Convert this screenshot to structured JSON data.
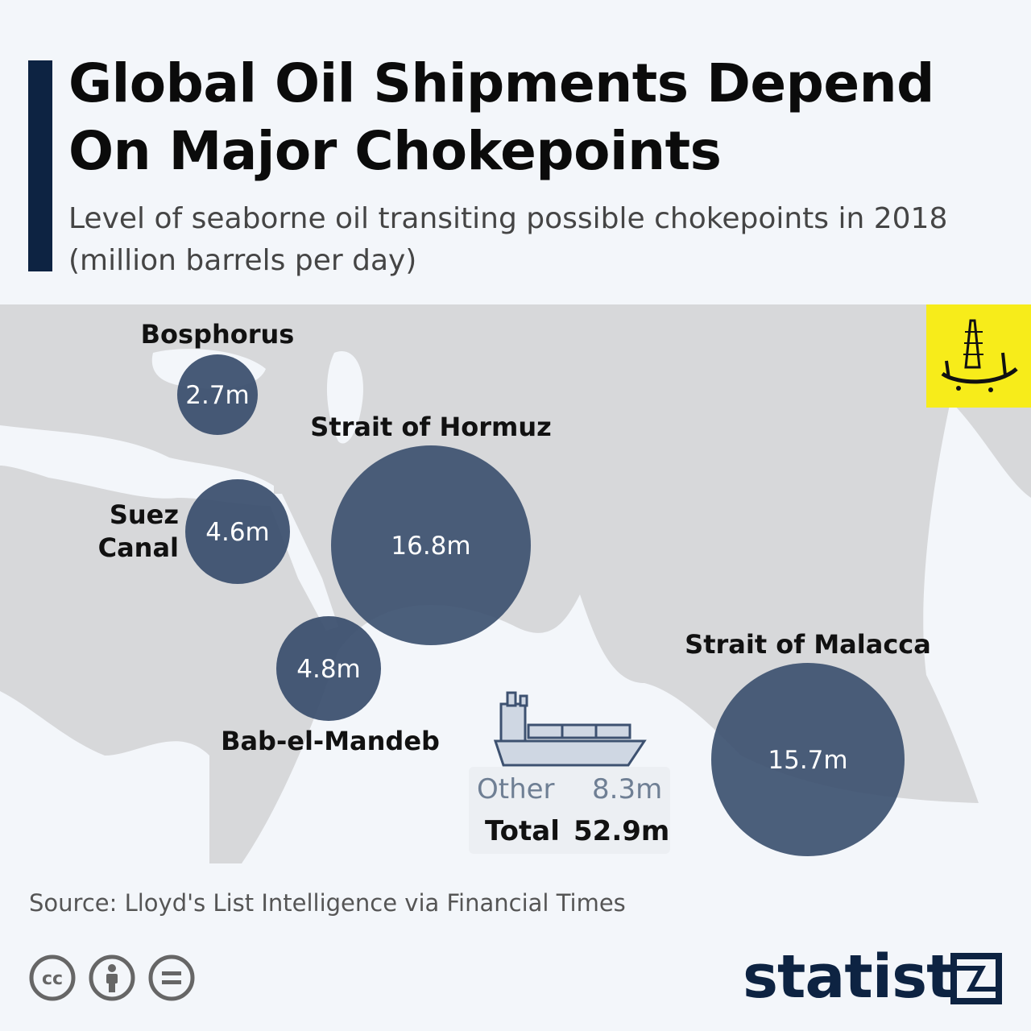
{
  "header": {
    "title": "Global Oil Shipments Depend On Major Chokepoints",
    "subtitle": "Level of seaborne oil transiting possible chokepoints in 2018 (million barrels per day)"
  },
  "chart_data": {
    "type": "bubble-map",
    "unit": "million barrels per day",
    "points": [
      {
        "name": "Bosphorus",
        "value": 2.7,
        "label": "2.7m"
      },
      {
        "name": "Strait of Hormuz",
        "value": 16.8,
        "label": "16.8m"
      },
      {
        "name": "Suez Canal",
        "value": 4.6,
        "label": "4.6m"
      },
      {
        "name": "Bab-el-Mandeb",
        "value": 4.8,
        "label": "4.8m"
      },
      {
        "name": "Strait of Malacca",
        "value": 15.7,
        "label": "15.7m"
      }
    ],
    "other": {
      "label": "Other",
      "value": 8.3,
      "display": "8.3m"
    },
    "total": {
      "label": "Total",
      "value": 52.9,
      "display": "52.9m"
    }
  },
  "labels": {
    "bosphorus": "Bosphorus",
    "hormuz": "Strait of Hormuz",
    "suez_line1": "Suez",
    "suez_line2": "Canal",
    "bab": "Bab-el-Mandeb",
    "malacca": "Strait of Malacca"
  },
  "source": "Source: Lloyd's List Intelligence via Financial Times",
  "brand": "statista",
  "colors": {
    "bubble": "#3d5170",
    "accent": "#0d2342",
    "map_land": "#c6c7c9",
    "map_sea": "#f3f6fa",
    "badge": "#f7ec1a"
  },
  "icons": {
    "cc": "creative-commons-icon",
    "by": "attribution-person-icon",
    "nd": "no-derivatives-icon",
    "ship": "oil-tanker-icon",
    "brand_mark": "statista-logo-mark"
  }
}
